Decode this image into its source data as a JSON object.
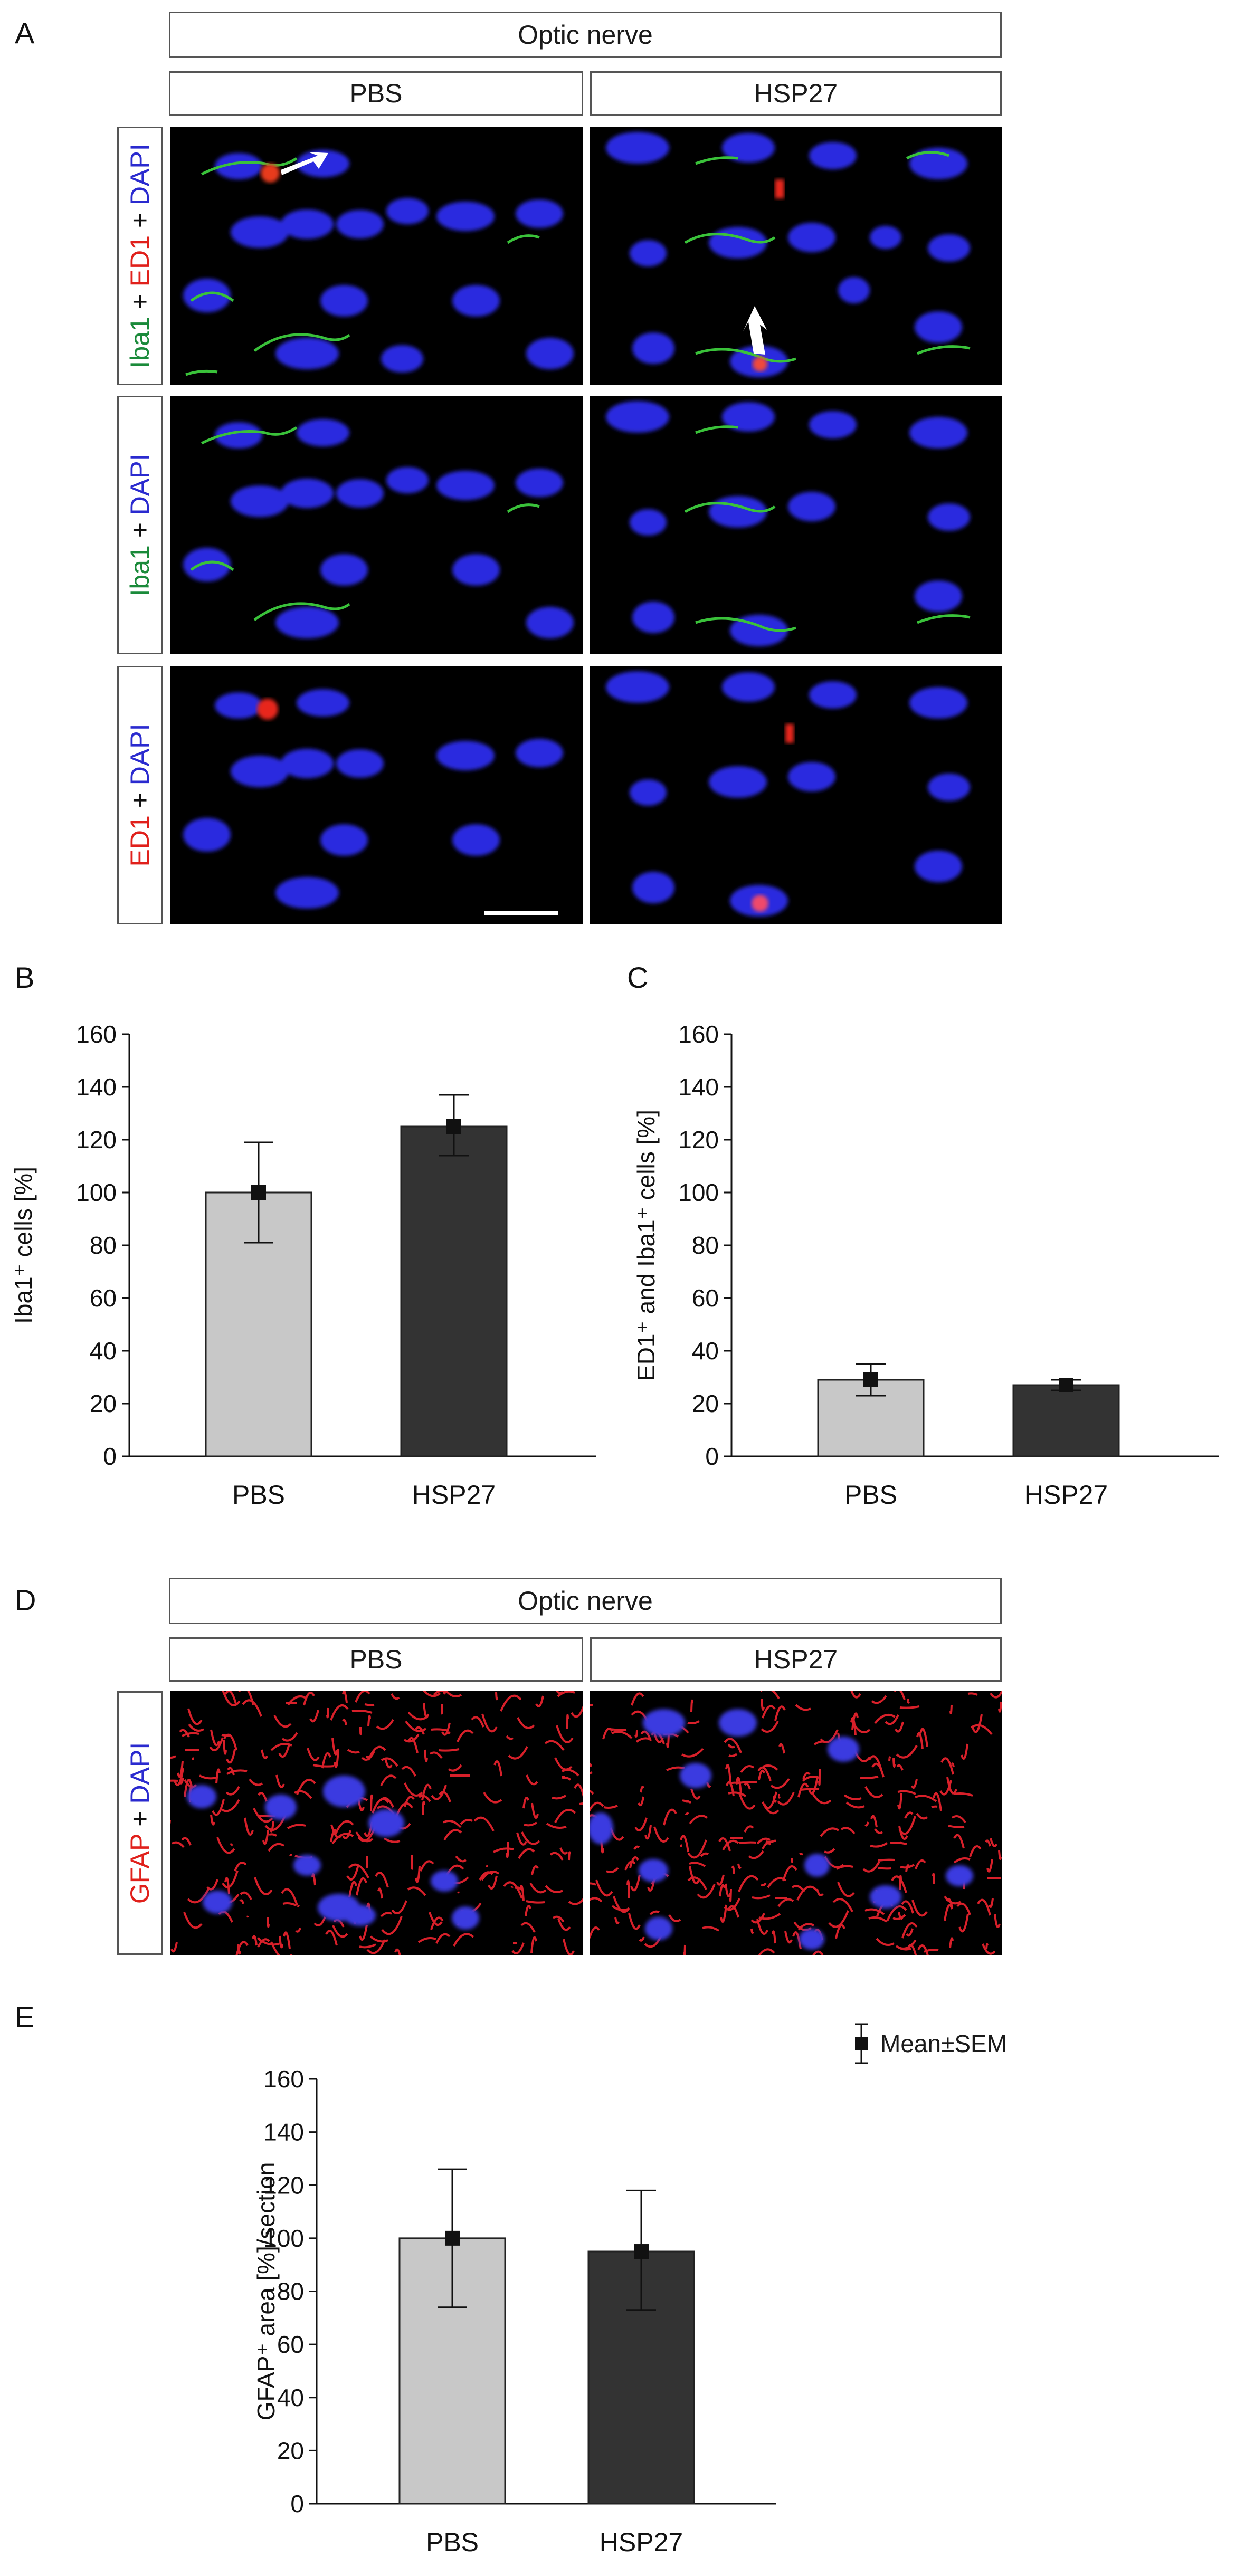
{
  "panel_letters": {
    "a": "A",
    "b": "B",
    "c": "C",
    "d": "D",
    "e": "E"
  },
  "panel_a": {
    "title": "Optic nerve",
    "columns": [
      "PBS",
      "HSP27"
    ],
    "row_labels": {
      "row1": [
        "Iba1",
        " + ",
        "ED1",
        " + ",
        "DAPI"
      ],
      "row2": [
        "Iba1",
        " + ",
        "DAPI"
      ],
      "row3": [
        "ED1",
        " + ",
        "DAPI"
      ]
    }
  },
  "panel_d": {
    "title": "Optic nerve",
    "columns": [
      "PBS",
      "HSP27"
    ],
    "row_label": [
      "GFAP",
      " + ",
      "DAPI"
    ]
  },
  "legend": {
    "label": "Mean±SEM"
  },
  "colors": {
    "pbs_bar": "#c8c8c8",
    "hsp27_bar": "#333333",
    "iba1": "#1a8a3a",
    "ed1": "#e0201b",
    "dapi": "#2a2acf"
  },
  "chart_data": [
    {
      "panel": "B",
      "type": "bar",
      "categories": [
        "PBS",
        "HSP27"
      ],
      "values": [
        100,
        125
      ],
      "error_low": [
        81,
        114
      ],
      "error_high": [
        119,
        137
      ],
      "ylabel": "Iba1⁺ cells [%]",
      "ylim": [
        0,
        160
      ],
      "yticks": [
        0,
        20,
        40,
        60,
        80,
        100,
        120,
        140,
        160
      ]
    },
    {
      "panel": "C",
      "type": "bar",
      "categories": [
        "PBS",
        "HSP27"
      ],
      "values": [
        29,
        27
      ],
      "error_low": [
        23,
        25
      ],
      "error_high": [
        35,
        29
      ],
      "ylabel": "ED1⁺ and Iba1⁺ cells [%]",
      "ylim": [
        0,
        160
      ],
      "yticks": [
        0,
        20,
        40,
        60,
        80,
        100,
        120,
        140,
        160
      ]
    },
    {
      "panel": "E",
      "type": "bar",
      "categories": [
        "PBS",
        "HSP27"
      ],
      "values": [
        100,
        95
      ],
      "error_low": [
        74,
        73
      ],
      "error_high": [
        126,
        118
      ],
      "ylabel": "GFAP⁺ area [%]/section",
      "ylim": [
        0,
        160
      ],
      "yticks": [
        0,
        20,
        40,
        60,
        80,
        100,
        120,
        140,
        160
      ]
    }
  ]
}
